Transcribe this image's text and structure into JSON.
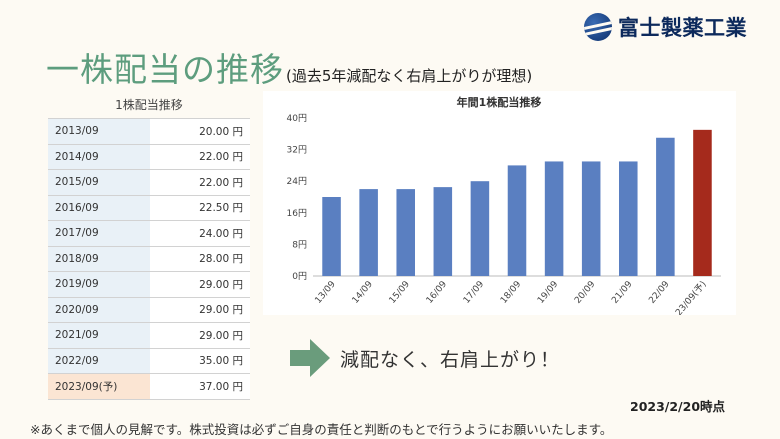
{
  "brand": {
    "name": "富士製薬工業",
    "logo_icon": "fuji-globe-logo-icon",
    "color": "#0d2a5c"
  },
  "title": {
    "main": "一株配当の推移",
    "sub": "(過去5年減配なく右肩上がりが理想)",
    "color": "#5d9d7e"
  },
  "table": {
    "title": "1株配当推移",
    "rows": [
      {
        "year": "2013/09",
        "value": "20.00 円"
      },
      {
        "year": "2014/09",
        "value": "22.00 円"
      },
      {
        "year": "2015/09",
        "value": "22.00 円"
      },
      {
        "year": "2016/09",
        "value": "22.50 円"
      },
      {
        "year": "2017/09",
        "value": "24.00 円"
      },
      {
        "year": "2018/09",
        "value": "28.00 円"
      },
      {
        "year": "2019/09",
        "value": "29.00 円"
      },
      {
        "year": "2020/09",
        "value": "29.00 円"
      },
      {
        "year": "2021/09",
        "value": "29.00 円"
      },
      {
        "year": "2022/09",
        "value": "35.00 円"
      },
      {
        "year": "2023/09(予)",
        "value": "37.00 円"
      }
    ]
  },
  "chart_data": {
    "type": "bar",
    "title": "年間1株配当推移",
    "categories": [
      "13/09",
      "14/09",
      "15/09",
      "16/09",
      "17/09",
      "18/09",
      "19/09",
      "20/09",
      "21/09",
      "22/09",
      "23/09(予)"
    ],
    "values": [
      20,
      22,
      22,
      22.5,
      24,
      28,
      29,
      29,
      29,
      35,
      37
    ],
    "ylim": [
      0,
      40
    ],
    "yticks": [
      0,
      8,
      16,
      24,
      32,
      40
    ],
    "ytick_labels": [
      "0円",
      "8円",
      "16円",
      "24円",
      "32円",
      "40円"
    ],
    "colors": {
      "actual": "#5a7fc1",
      "forecast": "#a52a1c"
    },
    "forecast_index": 10,
    "grid": false
  },
  "callout": {
    "icon": "right-arrow-icon",
    "text": "減配なく、右肩上がり！",
    "color": "#6a9c7c"
  },
  "as_of": "2023/2/20時点",
  "footnote": "※あくまで個人の見解です。株式投資は必ずご自身の責任と判断のもとで行うようにお願いいたします。"
}
